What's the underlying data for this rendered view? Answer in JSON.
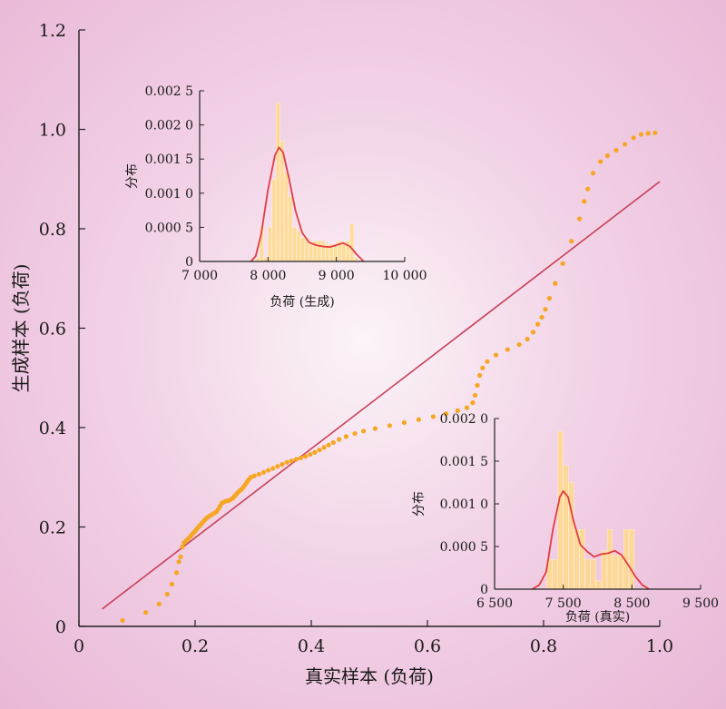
{
  "chart_data": [
    {
      "type": "scatter",
      "title": "",
      "xlabel": "真实样本 (负荷)",
      "ylabel": "生成样本 (负荷)",
      "xlim": [
        0,
        1.0
      ],
      "ylim": [
        0,
        1.2
      ],
      "x_ticks": [
        "0",
        "0.2",
        "0.4",
        "0.6",
        "0.8",
        "1.0"
      ],
      "y_ticks": [
        "0",
        "0.2",
        "0.4",
        "0.6",
        "0.8",
        "1.0",
        "1.2"
      ],
      "colors": {
        "points": "#f5a623",
        "reference_line": "#c94058"
      },
      "reference_line": {
        "x": [
          0.04,
          1.0
        ],
        "y": [
          0.035,
          0.895
        ]
      },
      "series": [
        {
          "points": [
            [
              0.075,
              0.012
            ],
            [
              0.115,
              0.028
            ],
            [
              0.138,
              0.045
            ],
            [
              0.152,
              0.065
            ],
            [
              0.16,
              0.085
            ],
            [
              0.168,
              0.108
            ],
            [
              0.172,
              0.13
            ],
            [
              0.175,
              0.14
            ],
            [
              0.178,
              0.16
            ],
            [
              0.181,
              0.168
            ],
            [
              0.184,
              0.172
            ],
            [
              0.188,
              0.176
            ],
            [
              0.191,
              0.18
            ],
            [
              0.194,
              0.184
            ],
            [
              0.197,
              0.188
            ],
            [
              0.2,
              0.192
            ],
            [
              0.203,
              0.196
            ],
            [
              0.206,
              0.2
            ],
            [
              0.209,
              0.204
            ],
            [
              0.212,
              0.208
            ],
            [
              0.215,
              0.212
            ],
            [
              0.218,
              0.216
            ],
            [
              0.221,
              0.219
            ],
            [
              0.225,
              0.222
            ],
            [
              0.229,
              0.225
            ],
            [
              0.233,
              0.228
            ],
            [
              0.237,
              0.231
            ],
            [
              0.24,
              0.236
            ],
            [
              0.243,
              0.242
            ],
            [
              0.246,
              0.248
            ],
            [
              0.249,
              0.25
            ],
            [
              0.253,
              0.252
            ],
            [
              0.257,
              0.253
            ],
            [
              0.261,
              0.255
            ],
            [
              0.265,
              0.258
            ],
            [
              0.268,
              0.262
            ],
            [
              0.271,
              0.266
            ],
            [
              0.274,
              0.27
            ],
            [
              0.277,
              0.273
            ],
            [
              0.28,
              0.276
            ],
            [
              0.283,
              0.28
            ],
            [
              0.286,
              0.285
            ],
            [
              0.289,
              0.29
            ],
            [
              0.292,
              0.295
            ],
            [
              0.296,
              0.3
            ],
            [
              0.302,
              0.303
            ],
            [
              0.31,
              0.306
            ],
            [
              0.318,
              0.31
            ],
            [
              0.326,
              0.314
            ],
            [
              0.334,
              0.318
            ],
            [
              0.342,
              0.322
            ],
            [
              0.35,
              0.326
            ],
            [
              0.358,
              0.33
            ],
            [
              0.366,
              0.333
            ],
            [
              0.374,
              0.336
            ],
            [
              0.382,
              0.339
            ],
            [
              0.39,
              0.342
            ],
            [
              0.398,
              0.346
            ],
            [
              0.406,
              0.35
            ],
            [
              0.414,
              0.355
            ],
            [
              0.422,
              0.36
            ],
            [
              0.43,
              0.365
            ],
            [
              0.438,
              0.37
            ],
            [
              0.448,
              0.376
            ],
            [
              0.46,
              0.382
            ],
            [
              0.475,
              0.388
            ],
            [
              0.49,
              0.393
            ],
            [
              0.51,
              0.398
            ],
            [
              0.535,
              0.404
            ],
            [
              0.56,
              0.41
            ],
            [
              0.585,
              0.416
            ],
            [
              0.61,
              0.422
            ],
            [
              0.632,
              0.428
            ],
            [
              0.652,
              0.434
            ],
            [
              0.668,
              0.44
            ],
            [
              0.678,
              0.45
            ],
            [
              0.682,
              0.465
            ],
            [
              0.686,
              0.485
            ],
            [
              0.69,
              0.505
            ],
            [
              0.695,
              0.52
            ],
            [
              0.703,
              0.533
            ],
            [
              0.718,
              0.546
            ],
            [
              0.738,
              0.557
            ],
            [
              0.758,
              0.567
            ],
            [
              0.772,
              0.578
            ],
            [
              0.782,
              0.592
            ],
            [
              0.79,
              0.608
            ],
            [
              0.797,
              0.622
            ],
            [
              0.803,
              0.638
            ],
            [
              0.81,
              0.66
            ],
            [
              0.82,
              0.69
            ],
            [
              0.833,
              0.73
            ],
            [
              0.848,
              0.775
            ],
            [
              0.862,
              0.82
            ],
            [
              0.87,
              0.855
            ],
            [
              0.876,
              0.88
            ],
            [
              0.885,
              0.912
            ],
            [
              0.898,
              0.935
            ],
            [
              0.91,
              0.947
            ],
            [
              0.925,
              0.958
            ],
            [
              0.94,
              0.97
            ],
            [
              0.955,
              0.983
            ],
            [
              0.968,
              0.99
            ],
            [
              0.98,
              0.992
            ],
            [
              0.992,
              0.993
            ]
          ]
        }
      ]
    },
    {
      "type": "bar",
      "title": "",
      "xlabel": "负荷 (生成)",
      "ylabel": "分布",
      "xlim": [
        7000,
        10000
      ],
      "ylim": [
        0,
        0.0025
      ],
      "x_ticks": [
        "7 000",
        "8 000",
        "9 000",
        "10 000"
      ],
      "y_ticks": [
        "0",
        "0.000 5",
        "0.001 0",
        "0.001 5",
        "0.002 0",
        "0.002 5"
      ],
      "colors": {
        "bars": "#ffd98a",
        "curve": "#e23c42"
      },
      "bin_width": 60,
      "bins": [
        [
          7820,
          5e-05
        ],
        [
          7880,
          0.0005
        ],
        [
          7940,
          5e-05
        ],
        [
          8000,
          0.0005
        ],
        [
          8060,
          0.0012
        ],
        [
          8120,
          0.00232
        ],
        [
          8180,
          0.00176
        ],
        [
          8240,
          0.0013
        ],
        [
          8300,
          0.00095
        ],
        [
          8360,
          0.0005
        ],
        [
          8420,
          0.00045
        ],
        [
          8480,
          0.00035
        ],
        [
          8540,
          0.00035
        ],
        [
          8600,
          0.00025
        ],
        [
          8660,
          0.0003
        ],
        [
          8720,
          0.0003
        ],
        [
          8780,
          0.0003
        ],
        [
          8840,
          0.00025
        ],
        [
          8900,
          0.00025
        ],
        [
          8960,
          0.00025
        ],
        [
          9020,
          0.0003
        ],
        [
          9080,
          0.00028
        ],
        [
          9140,
          0.0003
        ],
        [
          9200,
          0.00055
        ],
        [
          9260,
          5e-05
        ]
      ],
      "kde": [
        [
          7750,
          0.0
        ],
        [
          7820,
          8e-05
        ],
        [
          7900,
          0.0004
        ],
        [
          8000,
          0.00105
        ],
        [
          8100,
          0.00155
        ],
        [
          8160,
          0.00167
        ],
        [
          8220,
          0.0016
        ],
        [
          8300,
          0.00125
        ],
        [
          8400,
          0.00075
        ],
        [
          8500,
          0.00042
        ],
        [
          8600,
          0.00028
        ],
        [
          8700,
          0.00024
        ],
        [
          8800,
          0.00022
        ],
        [
          8900,
          0.00021
        ],
        [
          9000,
          0.00024
        ],
        [
          9100,
          0.00027
        ],
        [
          9200,
          0.00022
        ],
        [
          9300,
          0.0001
        ],
        [
          9400,
          0.0
        ]
      ]
    },
    {
      "type": "bar",
      "title": "",
      "xlabel": "负荷 (真实)",
      "ylabel": "分布",
      "xlim": [
        6500,
        9500
      ],
      "ylim": [
        0,
        0.002
      ],
      "x_ticks": [
        "6 500",
        "7 500",
        "8 500",
        "9 500"
      ],
      "y_ticks": [
        "0",
        "0.000 5",
        "0.001 0",
        "0.001 5",
        "0.002 0"
      ],
      "colors": {
        "bars": "#ffd98a",
        "curve": "#e23c42"
      },
      "bin_width": 80,
      "bins": [
        [
          7260,
          0.00035
        ],
        [
          7340,
          0.00035
        ],
        [
          7420,
          0.00185
        ],
        [
          7500,
          0.00145
        ],
        [
          7580,
          0.00125
        ],
        [
          7660,
          0.0007
        ],
        [
          7740,
          0.0007
        ],
        [
          7820,
          0.00035
        ],
        [
          7900,
          0.00035
        ],
        [
          7980,
          0.0001
        ],
        [
          8060,
          0.00045
        ],
        [
          8140,
          0.0007
        ],
        [
          8220,
          0.0004
        ],
        [
          8300,
          0.0004
        ],
        [
          8380,
          0.0007
        ],
        [
          8460,
          0.0007
        ]
      ],
      "kde": [
        [
          7050,
          0.0
        ],
        [
          7150,
          5e-05
        ],
        [
          7250,
          0.0002
        ],
        [
          7350,
          0.0007
        ],
        [
          7450,
          0.00108
        ],
        [
          7500,
          0.00115
        ],
        [
          7570,
          0.00108
        ],
        [
          7650,
          0.0008
        ],
        [
          7750,
          0.00052
        ],
        [
          7850,
          0.00044
        ],
        [
          7950,
          0.00038
        ],
        [
          8050,
          0.00041
        ],
        [
          8150,
          0.00042
        ],
        [
          8250,
          0.00045
        ],
        [
          8350,
          0.0004
        ],
        [
          8450,
          0.00028
        ],
        [
          8550,
          0.00015
        ],
        [
          8650,
          5e-05
        ],
        [
          8750,
          0.0
        ]
      ]
    }
  ]
}
